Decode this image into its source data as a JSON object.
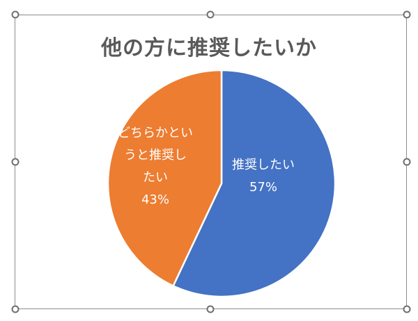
{
  "chart_data": {
    "type": "pie",
    "title": "他の方に推奨したいか",
    "categories": [
      "推奨したい",
      "どちらかというと推奨したい"
    ],
    "values": [
      57,
      43
    ],
    "unit": "%",
    "colors": [
      "#4472C4",
      "#ED7D31"
    ],
    "data_labels": [
      {
        "category_lines": [
          "推奨したい"
        ],
        "value": "57%"
      },
      {
        "category_lines": [
          "どちらかとい",
          "うと推奨し",
          "たい"
        ],
        "value": "43%"
      }
    ],
    "legend": "none"
  },
  "selection": {
    "handles": [
      "top-left",
      "top-center",
      "top-right",
      "middle-left",
      "middle-right",
      "bottom-left",
      "bottom-center",
      "bottom-right"
    ]
  }
}
